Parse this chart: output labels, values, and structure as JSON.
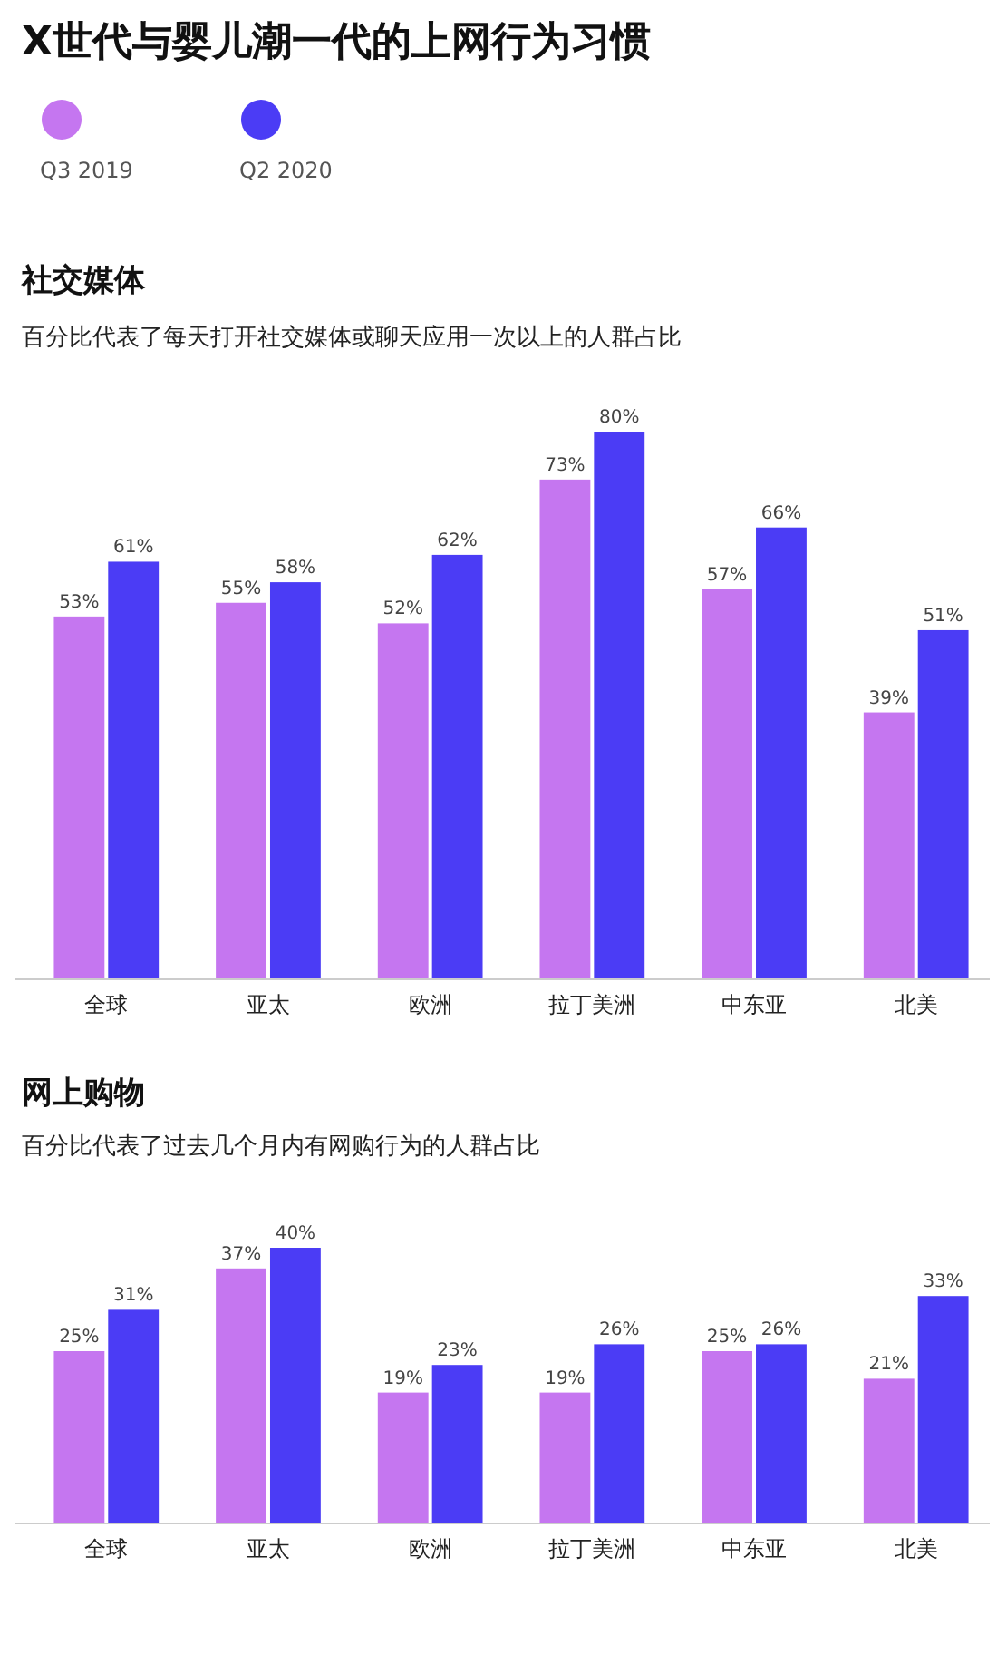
{
  "chart_data": [
    {
      "type": "bar",
      "title": "社交媒体",
      "subtitle": "百分比代表了每天打开社交媒体或聊天应用一次以上的人群占比",
      "annotations": [
        "X世代与婴儿潮一代的上网行为习惯"
      ],
      "categories": [
        "全球",
        "亚太",
        "欧洲",
        "拉丁美洲",
        "中东亚",
        "北美"
      ],
      "series": [
        {
          "name": "Q3 2019",
          "color": "#c576f0",
          "values": [
            53,
            55,
            52,
            73,
            57,
            39
          ],
          "value_labels": [
            "53%",
            "55%",
            "52%",
            "73%",
            "57%",
            "39%"
          ]
        },
        {
          "name": "Q2 2020",
          "color": "#4b3cf5",
          "values": [
            61,
            58,
            62,
            80,
            66,
            51
          ],
          "value_labels": [
            "61%",
            "58%",
            "62%",
            "80%",
            "66%",
            "51%"
          ]
        }
      ],
      "legend": "top left"
    },
    {
      "type": "bar",
      "title": "网上购物",
      "subtitle": "百分比代表了过去几个月内有网购行为的人群占比",
      "categories": [
        "全球",
        "亚太",
        "欧洲",
        "拉丁美洲",
        "中东亚",
        "北美"
      ],
      "series": [
        {
          "color": "#c576f0",
          "values": [
            25,
            37,
            19,
            19,
            25,
            21
          ],
          "value_labels": [
            "25%",
            "37%",
            "19%",
            "19%",
            "25%",
            "21%"
          ]
        },
        {
          "color": "#4b3cf5",
          "values": [
            31,
            40,
            23,
            26,
            26,
            33
          ],
          "value_labels": [
            "31%",
            "40%",
            "23%",
            "26%",
            "26%",
            "33%"
          ]
        }
      ]
    }
  ]
}
